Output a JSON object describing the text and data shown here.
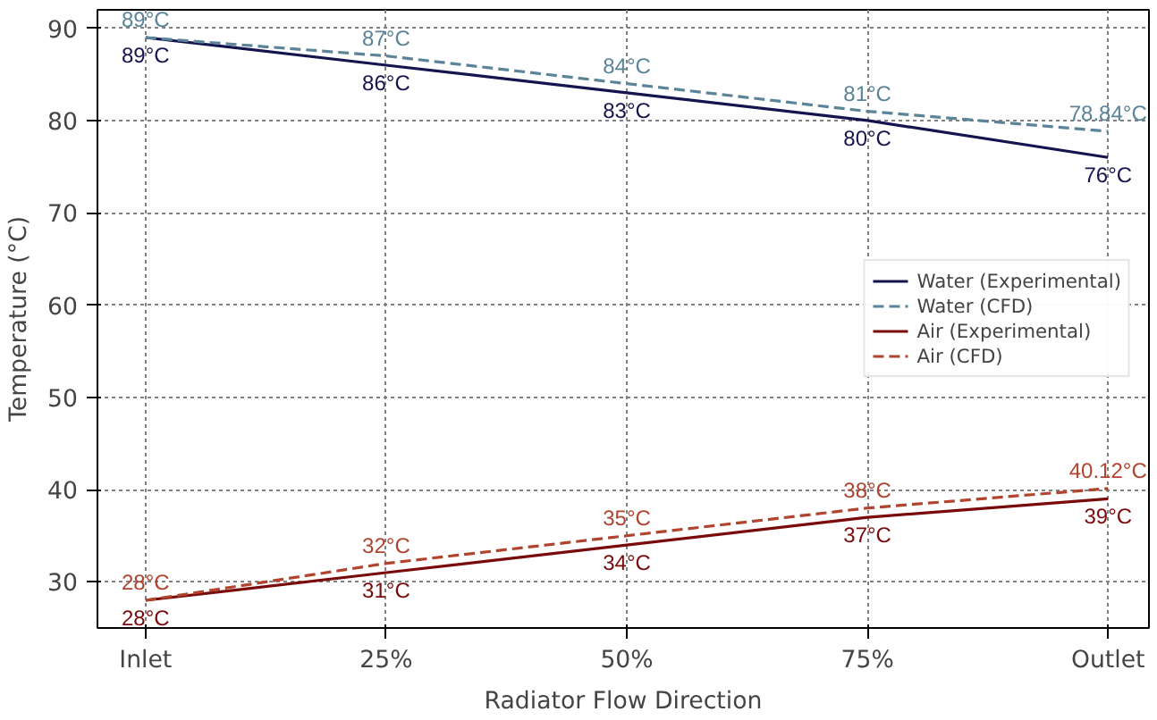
{
  "chart_data": {
    "type": "line",
    "xlabel": "Radiator Flow Direction",
    "ylabel": "Temperature (°C)",
    "categories": [
      "Inlet",
      "25%",
      "50%",
      "75%",
      "Outlet"
    ],
    "ylim": [
      25,
      92
    ],
    "yticks": [
      30,
      40,
      50,
      60,
      70,
      80,
      90
    ],
    "grid": true,
    "legend": "right",
    "marker": "none",
    "series": [
      {
        "name": "Water (Experimental)",
        "color": "#14144f",
        "line_style": "solid",
        "values": [
          89,
          86,
          83,
          80,
          76
        ],
        "value_labels": [
          "89°C",
          "86°C",
          "83°C",
          "80°C",
          "76°C"
        ]
      },
      {
        "name": "Water (CFD)",
        "color": "#5b8499",
        "line_style": "dashed",
        "values": [
          89,
          87,
          84,
          81,
          78.84
        ],
        "value_labels": [
          "89°C",
          "87°C",
          "84°C",
          "81°C",
          "78.84°C"
        ]
      },
      {
        "name": "Air (Experimental)",
        "color": "#7a0a0a",
        "line_style": "solid",
        "values": [
          28,
          31,
          34,
          37,
          39
        ],
        "value_labels": [
          "28°C",
          "31°C",
          "34°C",
          "37°C",
          "39°C"
        ]
      },
      {
        "name": "Air (CFD)",
        "color": "#b0442e",
        "line_style": "dashed",
        "values": [
          28,
          32,
          35,
          38,
          40.12
        ],
        "value_labels": [
          "28°C",
          "32°C",
          "35°C",
          "38°C",
          "40.12°C"
        ]
      }
    ]
  }
}
